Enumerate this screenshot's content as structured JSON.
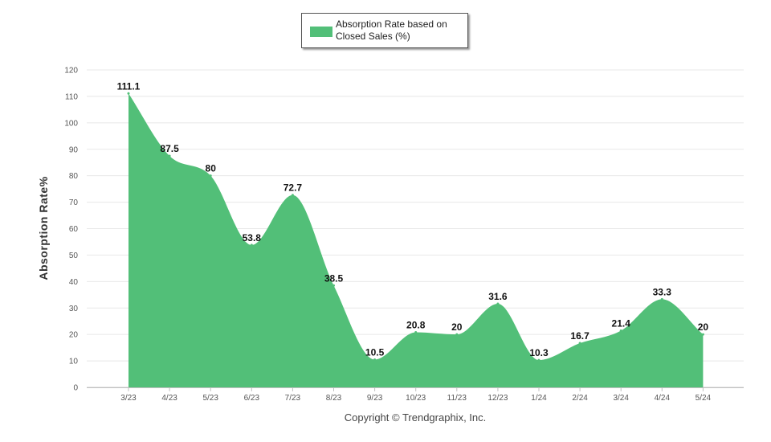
{
  "chart_data": {
    "type": "area",
    "title": "",
    "xlabel": "",
    "ylabel": "Absorption Rate%",
    "ylim": [
      0,
      120
    ],
    "yticks": [
      0,
      10,
      20,
      30,
      40,
      50,
      60,
      70,
      80,
      90,
      100,
      110,
      120
    ],
    "grid": true,
    "legend_position": "top-center",
    "categories": [
      "3/23",
      "4/23",
      "5/23",
      "6/23",
      "7/23",
      "8/23",
      "9/23",
      "10/23",
      "11/23",
      "12/23",
      "1/24",
      "2/24",
      "3/24",
      "4/24",
      "5/24"
    ],
    "series": [
      {
        "name": "Absorption Rate based on Closed Sales (%)",
        "values": [
          111.1,
          87.5,
          80,
          53.8,
          72.7,
          38.5,
          10.5,
          20.8,
          20,
          31.6,
          10.3,
          16.7,
          21.4,
          33.3,
          20
        ],
        "labels": [
          "111.1",
          "87.5",
          "80",
          "53.8",
          "72.7",
          "38.5",
          "10.5",
          "20.8",
          "20",
          "31.6",
          "10.3",
          "16.7",
          "21.4",
          "33.3",
          "20"
        ]
      }
    ],
    "colors": {
      "fill": "#52bf78",
      "grid": "#e8e8e8",
      "tick_text": "#555555",
      "label_text": "#111111"
    }
  },
  "legend": {
    "label": "Absorption Rate based on Closed Sales (%)"
  },
  "footer": {
    "copyright": "Copyright © Trendgraphix, Inc."
  }
}
